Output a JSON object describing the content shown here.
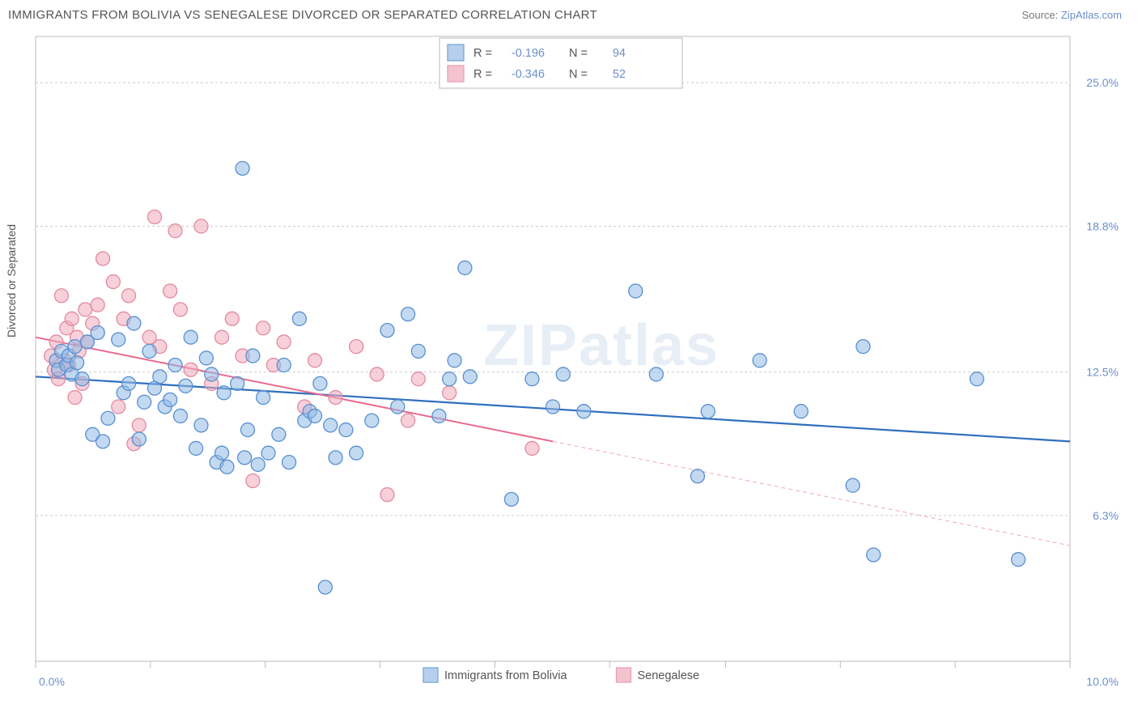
{
  "header": {
    "title": "IMMIGRANTS FROM BOLIVIA VS SENEGALESE DIVORCED OR SEPARATED CORRELATION CHART",
    "source_prefix": "Source: ",
    "source_link": "ZipAtlas.com"
  },
  "chart": {
    "type": "scatter",
    "watermark": "ZIPatlas",
    "yaxis_title": "Divorced or Separated",
    "background_color": "#ffffff",
    "plot_border_color": "#bbbbbb",
    "grid_color": "#cccccc",
    "xlim": [
      0.0,
      10.0
    ],
    "ylim": [
      0.0,
      27.0
    ],
    "xtick_positions": [
      0.0,
      1.11,
      2.22,
      3.33,
      4.44,
      5.55,
      6.67,
      7.78,
      8.89,
      10.0
    ],
    "xtick_labels_visible": {
      "left": "0.0%",
      "right": "10.0%"
    },
    "ytick_positions": [
      6.3,
      12.5,
      18.8,
      25.0
    ],
    "ytick_labels": [
      "6.3%",
      "12.5%",
      "18.8%",
      "25.0%"
    ],
    "marker_radius": 8.5,
    "series": [
      {
        "name": "Immigrants from Bolivia",
        "key": "bolivia",
        "color_fill": "#8fb9e6",
        "color_stroke": "#5a8fd0",
        "R": -0.196,
        "N": 94,
        "trend": {
          "x1": 0.0,
          "y1": 12.3,
          "x2": 10.0,
          "y2": 9.5,
          "color": "#2f6fbd",
          "dashed": false
        },
        "points": [
          [
            0.2,
            13.0
          ],
          [
            0.22,
            12.6
          ],
          [
            0.25,
            13.4
          ],
          [
            0.3,
            12.8
          ],
          [
            0.32,
            13.2
          ],
          [
            0.35,
            12.4
          ],
          [
            0.38,
            13.6
          ],
          [
            0.4,
            12.9
          ],
          [
            0.45,
            12.2
          ],
          [
            0.5,
            13.8
          ],
          [
            0.55,
            9.8
          ],
          [
            0.6,
            14.2
          ],
          [
            0.65,
            9.5
          ],
          [
            0.7,
            10.5
          ],
          [
            0.8,
            13.9
          ],
          [
            0.85,
            11.6
          ],
          [
            0.9,
            12.0
          ],
          [
            0.95,
            14.6
          ],
          [
            1.0,
            9.6
          ],
          [
            1.05,
            11.2
          ],
          [
            1.1,
            13.4
          ],
          [
            1.15,
            11.8
          ],
          [
            1.2,
            12.3
          ],
          [
            1.25,
            11.0
          ],
          [
            1.3,
            11.3
          ],
          [
            1.35,
            12.8
          ],
          [
            1.4,
            10.6
          ],
          [
            1.45,
            11.9
          ],
          [
            1.5,
            14.0
          ],
          [
            1.55,
            9.2
          ],
          [
            1.6,
            10.2
          ],
          [
            1.65,
            13.1
          ],
          [
            1.7,
            12.4
          ],
          [
            1.75,
            8.6
          ],
          [
            1.8,
            9.0
          ],
          [
            1.82,
            11.6
          ],
          [
            1.85,
            8.4
          ],
          [
            1.95,
            12.0
          ],
          [
            2.0,
            21.3
          ],
          [
            2.02,
            8.8
          ],
          [
            2.05,
            10.0
          ],
          [
            2.1,
            13.2
          ],
          [
            2.15,
            8.5
          ],
          [
            2.2,
            11.4
          ],
          [
            2.25,
            9.0
          ],
          [
            2.35,
            9.8
          ],
          [
            2.4,
            12.8
          ],
          [
            2.45,
            8.6
          ],
          [
            2.55,
            14.8
          ],
          [
            2.6,
            10.4
          ],
          [
            2.65,
            10.8
          ],
          [
            2.7,
            10.6
          ],
          [
            2.75,
            12.0
          ],
          [
            2.8,
            3.2
          ],
          [
            2.85,
            10.2
          ],
          [
            2.9,
            8.8
          ],
          [
            3.0,
            10.0
          ],
          [
            3.1,
            9.0
          ],
          [
            3.25,
            10.4
          ],
          [
            3.4,
            14.3
          ],
          [
            3.5,
            11.0
          ],
          [
            3.6,
            15.0
          ],
          [
            3.7,
            13.4
          ],
          [
            3.9,
            10.6
          ],
          [
            4.0,
            12.2
          ],
          [
            4.05,
            13.0
          ],
          [
            4.15,
            17.0
          ],
          [
            4.2,
            12.3
          ],
          [
            4.6,
            7.0
          ],
          [
            4.8,
            12.2
          ],
          [
            5.0,
            11.0
          ],
          [
            5.1,
            12.4
          ],
          [
            5.3,
            10.8
          ],
          [
            5.8,
            16.0
          ],
          [
            6.0,
            12.4
          ],
          [
            6.4,
            8.0
          ],
          [
            6.5,
            10.8
          ],
          [
            7.0,
            13.0
          ],
          [
            7.4,
            10.8
          ],
          [
            7.9,
            7.6
          ],
          [
            8.0,
            13.6
          ],
          [
            8.1,
            4.6
          ],
          [
            9.1,
            12.2
          ],
          [
            9.5,
            4.4
          ]
        ]
      },
      {
        "name": "Senegalese",
        "key": "senegalese",
        "color_fill": "#f1a9bb",
        "color_stroke": "#e28aa0",
        "R": -0.346,
        "N": 52,
        "trend_solid": {
          "x1": 0.0,
          "y1": 14.0,
          "x2": 5.0,
          "y2": 9.5,
          "color": "#e86b8d"
        },
        "trend_dashed": {
          "x1": 5.0,
          "y1": 9.5,
          "x2": 10.0,
          "y2": 5.0,
          "color": "#f1a9bb"
        },
        "points": [
          [
            0.15,
            13.2
          ],
          [
            0.18,
            12.6
          ],
          [
            0.2,
            13.8
          ],
          [
            0.22,
            12.2
          ],
          [
            0.25,
            15.8
          ],
          [
            0.28,
            13.0
          ],
          [
            0.3,
            14.4
          ],
          [
            0.32,
            12.8
          ],
          [
            0.35,
            14.8
          ],
          [
            0.38,
            11.4
          ],
          [
            0.4,
            14.0
          ],
          [
            0.42,
            13.4
          ],
          [
            0.45,
            12.0
          ],
          [
            0.48,
            15.2
          ],
          [
            0.5,
            13.8
          ],
          [
            0.55,
            14.6
          ],
          [
            0.6,
            15.4
          ],
          [
            0.65,
            17.4
          ],
          [
            0.75,
            16.4
          ],
          [
            0.8,
            11.0
          ],
          [
            0.85,
            14.8
          ],
          [
            0.9,
            15.8
          ],
          [
            0.95,
            9.4
          ],
          [
            1.0,
            10.2
          ],
          [
            1.1,
            14.0
          ],
          [
            1.15,
            19.2
          ],
          [
            1.2,
            13.6
          ],
          [
            1.3,
            16.0
          ],
          [
            1.35,
            18.6
          ],
          [
            1.4,
            15.2
          ],
          [
            1.5,
            12.6
          ],
          [
            1.6,
            18.8
          ],
          [
            1.7,
            12.0
          ],
          [
            1.8,
            14.0
          ],
          [
            1.9,
            14.8
          ],
          [
            2.0,
            13.2
          ],
          [
            2.1,
            7.8
          ],
          [
            2.2,
            14.4
          ],
          [
            2.3,
            12.8
          ],
          [
            2.4,
            13.8
          ],
          [
            2.6,
            11.0
          ],
          [
            2.7,
            13.0
          ],
          [
            2.9,
            11.4
          ],
          [
            3.1,
            13.6
          ],
          [
            3.3,
            12.4
          ],
          [
            3.4,
            7.2
          ],
          [
            3.6,
            10.4
          ],
          [
            3.7,
            12.2
          ],
          [
            4.0,
            11.6
          ],
          [
            4.8,
            9.2
          ]
        ]
      }
    ],
    "legend_top": {
      "rows": [
        {
          "swatch": "blue",
          "r_label": "R  =",
          "r_value": "-0.196",
          "n_label": "N  =",
          "n_value": "94"
        },
        {
          "swatch": "pink",
          "r_label": "R  =",
          "r_value": "-0.346",
          "n_label": "N  =",
          "n_value": "52"
        }
      ]
    },
    "legend_bottom": [
      {
        "swatch": "blue",
        "label": "Immigrants from Bolivia"
      },
      {
        "swatch": "pink",
        "label": "Senegalese"
      }
    ]
  }
}
